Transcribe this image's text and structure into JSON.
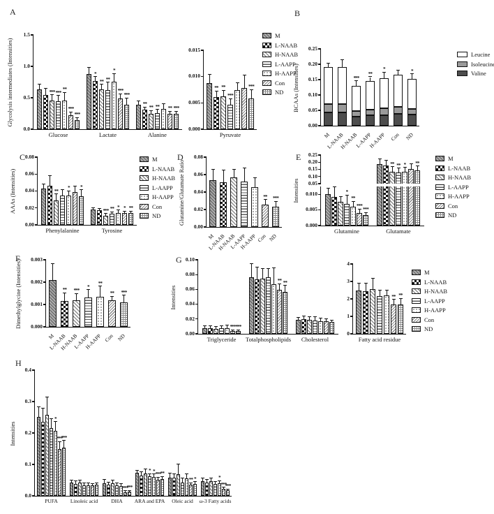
{
  "figure": {
    "panel_labels": [
      "A",
      "B",
      "C",
      "D",
      "E",
      "F",
      "G",
      "H"
    ]
  },
  "groups": [
    "M",
    "L-NAAB",
    "H-NAAB",
    "L-AAPP",
    "H-AAPP",
    "Con",
    "ND"
  ],
  "bcaa_legend": [
    {
      "label": "Leucine",
      "color": "#ffffff"
    },
    {
      "label": "Isoleucine",
      "color": "#9a9a9a"
    },
    {
      "label": "Valine",
      "color": "#4d4d4d"
    }
  ],
  "e_axis_label": "Intensities",
  "colors": {
    "axis": "#111111",
    "leucine": "#ffffff",
    "isoleucine": "#9a9a9a",
    "valine": "#4d4d4d"
  },
  "chart_data": [
    {
      "id": "A-main",
      "panel": "A",
      "type": "bar",
      "ylabel": "Glycolysis intermediates (Intensities)",
      "ymax": 1.5,
      "yticks": [
        "0.0",
        "0.5",
        "1.0",
        "1.5"
      ],
      "categories": [
        {
          "name": "Glucose",
          "values": [
            0.63,
            0.55,
            0.46,
            0.44,
            0.46,
            0.22,
            0.14
          ],
          "errors": [
            0.08,
            0.1,
            0.08,
            0.09,
            0.12,
            0.05,
            0.04
          ],
          "stars": [
            "",
            "",
            "***",
            "***",
            "**",
            "***",
            "***"
          ]
        },
        {
          "name": "Lactate",
          "values": [
            0.88,
            0.77,
            0.63,
            0.62,
            0.76,
            0.49,
            0.39
          ],
          "errors": [
            0.1,
            0.06,
            0.08,
            0.12,
            0.12,
            0.07,
            0.1
          ],
          "stars": [
            "",
            "*",
            "**",
            "**",
            "*",
            "***",
            "***"
          ]
        },
        {
          "name": "Alanine",
          "values": [
            0.39,
            0.31,
            0.25,
            0.26,
            0.32,
            0.25,
            0.24
          ],
          "errors": [
            0.06,
            0.04,
            0.04,
            0.05,
            0.08,
            0.03,
            0.04
          ],
          "stars": [
            "",
            "**",
            "**",
            "**",
            "",
            "**",
            "***"
          ]
        }
      ]
    },
    {
      "id": "A-pyr",
      "panel": "A",
      "type": "bar",
      "ymax": 0.015,
      "yticks": [
        "0.000",
        "0.005",
        "0.010",
        "0.015"
      ],
      "categories": [
        {
          "name": "Pyruvate",
          "values": [
            0.0088,
            0.0061,
            0.0062,
            0.0047,
            0.0074,
            0.0078,
            0.0058
          ],
          "errors": [
            0.0015,
            0.0011,
            0.0011,
            0.001,
            0.0014,
            0.0024,
            0.0017
          ],
          "stars": [
            "",
            "**",
            "**",
            "***",
            "",
            "",
            "***"
          ]
        }
      ]
    },
    {
      "id": "B",
      "panel": "B",
      "type": "stacked_bar",
      "ylabel": "BCAAs (Intensities)",
      "ymax": 0.25,
      "yticks": [
        "0.00",
        "0.05",
        "0.10",
        "0.15",
        "0.20",
        "0.25"
      ],
      "rot_labels": true,
      "series": [
        {
          "name": "Valine",
          "color": "#4d4d4d",
          "values": [
            0.044,
            0.043,
            0.029,
            0.033,
            0.035,
            0.038,
            0.036
          ],
          "errors": [
            0.004,
            0.005,
            0.003,
            0.004,
            0.005,
            0.005,
            0.004
          ],
          "stars": [
            "",
            "",
            "**",
            "*",
            "*",
            "",
            "*"
          ]
        },
        {
          "name": "Isoleucine",
          "color": "#9a9a9a",
          "values": [
            0.026,
            0.027,
            0.018,
            0.02,
            0.022,
            0.023,
            0.019
          ],
          "errors": [
            0.003,
            0.005,
            0.004,
            0.004,
            0.004,
            0.004,
            0.004
          ],
          "stars": [
            "",
            "",
            "***",
            "**",
            "",
            "*",
            "**"
          ]
        },
        {
          "name": "Leucine",
          "color": "#ffffff",
          "values": [
            0.121,
            0.121,
            0.082,
            0.093,
            0.098,
            0.104,
            0.097
          ],
          "errors": [
            0.012,
            0.022,
            0.016,
            0.012,
            0.018,
            0.015,
            0.016
          ],
          "stars": [
            "",
            "",
            "***",
            "**",
            "*",
            "",
            "*"
          ]
        }
      ]
    },
    {
      "id": "C",
      "panel": "C",
      "type": "bar",
      "ylabel": "AAAs (Intensities)",
      "ymax": 0.08,
      "yticks": [
        "0.00",
        "0.02",
        "0.04",
        "0.06",
        "0.08"
      ],
      "categories": [
        {
          "name": "Phenylalanine",
          "values": [
            0.043,
            0.046,
            0.029,
            0.035,
            0.035,
            0.039,
            0.034
          ],
          "errors": [
            0.005,
            0.012,
            0.007,
            0.006,
            0.005,
            0.006,
            0.007
          ],
          "stars": [
            "",
            "",
            "**",
            "",
            "*",
            "",
            "*"
          ]
        },
        {
          "name": "Tyrosine",
          "values": [
            0.018,
            0.017,
            0.011,
            0.013,
            0.014,
            0.014,
            0.014
          ],
          "errors": [
            0.002,
            0.002,
            0.002,
            0.002,
            0.003,
            0.002,
            0.002
          ],
          "stars": [
            "",
            "",
            "***",
            "**",
            "*",
            "*",
            "**"
          ]
        }
      ]
    },
    {
      "id": "D",
      "panel": "D",
      "type": "bar",
      "ylabel": "Glutamine/Glutamate Ratio",
      "ymax": 0.08,
      "yticks": [
        "0.00",
        "0.02",
        "0.04",
        "0.06",
        "0.08"
      ],
      "rot_labels": true,
      "categories": [
        {
          "name": "",
          "values": [
            0.054,
            0.051,
            0.057,
            0.052,
            0.046,
            0.026,
            0.023
          ],
          "errors": [
            0.012,
            0.014,
            0.009,
            0.015,
            0.01,
            0.005,
            0.006
          ],
          "stars": [
            "",
            "",
            "",
            "",
            "",
            "**",
            "***"
          ]
        }
      ]
    },
    {
      "id": "E-top",
      "panel": "E",
      "type": "bar",
      "ymin": 0.05,
      "ymax": 0.25,
      "no_baseline": true,
      "cat_labels": false,
      "yticks": [
        "0.05",
        "0.10",
        "0.15",
        "0.20",
        "0.25"
      ],
      "categories": [
        {
          "name": "Glutamine",
          "values": [
            0.01,
            0.0092,
            0.0075,
            0.0069,
            0.0061,
            0.004,
            0.0033
          ],
          "errors": [
            0,
            0,
            0,
            0,
            0,
            0,
            0
          ],
          "stars": [
            "",
            "",
            "",
            "",
            "",
            "",
            ""
          ]
        },
        {
          "name": "Glutamate",
          "values": [
            0.186,
            0.178,
            0.135,
            0.13,
            0.133,
            0.152,
            0.143
          ],
          "errors": [
            0.036,
            0.032,
            0.03,
            0.025,
            0.027,
            0.033,
            0.027
          ],
          "stars": [
            "",
            "",
            "**",
            "**",
            "*",
            "",
            "**"
          ]
        }
      ]
    },
    {
      "id": "E-bot",
      "panel": "E",
      "type": "bar",
      "ymax": 0.0125,
      "yticks": [
        "0.000",
        "0.005",
        "0.010"
      ],
      "categories": [
        {
          "name": "Glutamine",
          "values": [
            0.01,
            0.0092,
            0.0075,
            0.0069,
            0.0061,
            0.004,
            0.0033
          ],
          "errors": [
            0.0018,
            0.003,
            0.0017,
            0.0028,
            0.0016,
            0.0012,
            0.0008
          ],
          "stars": [
            "",
            "",
            "",
            "*",
            "**",
            "***",
            "***"
          ]
        },
        {
          "name": "Glutamate",
          "values": [
            0.186,
            0.178,
            0.135,
            0.13,
            0.133,
            0.152,
            0.143
          ],
          "errors": [
            0,
            0,
            0,
            0,
            0,
            0,
            0
          ],
          "stars": [
            "",
            "",
            "",
            "",
            "",
            "",
            ""
          ]
        }
      ]
    },
    {
      "id": "F",
      "panel": "F",
      "type": "bar",
      "ylabel": "Dimethylglycine  (Intensities)",
      "ymax": 0.003,
      "yticks": [
        "0.000",
        "0.001",
        "0.002",
        "0.003"
      ],
      "rot_labels": true,
      "categories": [
        {
          "name": "",
          "values": [
            0.0021,
            0.00115,
            0.00118,
            0.0013,
            0.00135,
            0.0012,
            0.0011
          ],
          "errors": [
            0.0007,
            0.00035,
            0.0003,
            0.00035,
            0.00045,
            0.00015,
            0.0003
          ],
          "stars": [
            "",
            "**",
            "***",
            "*",
            "**",
            "**",
            "***"
          ]
        }
      ]
    },
    {
      "id": "G-left",
      "panel": "G",
      "type": "bar",
      "ylabel": "Intensities",
      "ymax": 0.1,
      "yticks": [
        "0.00",
        "0.02",
        "0.04",
        "0.06",
        "0.08",
        "0.10"
      ],
      "categories": [
        {
          "name": "Triglyceride",
          "values": [
            0.008,
            0.008,
            0.007,
            0.008,
            0.008,
            0.004,
            0.004
          ],
          "errors": [
            0.002,
            0.002,
            0.002,
            0.002,
            0.003,
            0.001,
            0.001
          ],
          "stars": [
            "",
            "",
            "",
            "",
            "",
            "***",
            "***"
          ]
        },
        {
          "name": "Totalphospholipids",
          "values": [
            0.076,
            0.074,
            0.075,
            0.076,
            0.067,
            0.059,
            0.057
          ],
          "errors": [
            0.018,
            0.016,
            0.013,
            0.012,
            0.022,
            0.008,
            0.008
          ],
          "stars": [
            "",
            "",
            "",
            "",
            "",
            "**",
            "**"
          ]
        },
        {
          "name": "Cholesterol",
          "values": [
            0.019,
            0.02,
            0.019,
            0.018,
            0.017,
            0.017,
            0.016
          ],
          "errors": [
            0.003,
            0.004,
            0.004,
            0.005,
            0.004,
            0.003,
            0.002
          ],
          "stars": [
            "",
            "",
            "",
            "",
            "",
            "",
            ""
          ]
        }
      ]
    },
    {
      "id": "G-right",
      "panel": "G",
      "type": "bar",
      "ymax": 4,
      "yticks": [
        "0",
        "1",
        "2",
        "3",
        "4"
      ],
      "categories": [
        {
          "name": "Fatty acid residue",
          "values": [
            2.5,
            2.45,
            2.55,
            2.15,
            2.2,
            1.7,
            1.7
          ],
          "errors": [
            0.4,
            0.45,
            0.6,
            0.35,
            0.3,
            0.25,
            0.3
          ],
          "stars": [
            "",
            "",
            "",
            "",
            "",
            "**",
            "**"
          ]
        }
      ]
    },
    {
      "id": "H",
      "panel": "H",
      "type": "bar",
      "ylabel": "Intensities",
      "ymax": 0.4,
      "yticks": [
        "0.0",
        "0.1",
        "0.2",
        "0.3",
        "0.4"
      ],
      "categories": [
        {
          "name": "PUFA",
          "values": [
            0.252,
            0.235,
            0.258,
            0.215,
            0.207,
            0.15,
            0.153
          ],
          "errors": [
            0.03,
            0.042,
            0.055,
            0.03,
            0.028,
            0.022,
            0.022
          ],
          "stars": [
            "",
            "",
            "",
            "",
            "*",
            "***",
            "***"
          ]
        },
        {
          "name": "Linoleic acid",
          "values": [
            0.042,
            0.038,
            0.042,
            0.033,
            0.034,
            0.033,
            0.035
          ],
          "errors": [
            0.007,
            0.008,
            0.008,
            0.006,
            0.006,
            0.005,
            0.005
          ],
          "stars": [
            "",
            "",
            "",
            "",
            "",
            "",
            ""
          ]
        },
        {
          "name": "DHA",
          "values": [
            0.04,
            0.035,
            0.04,
            0.033,
            0.032,
            0.012,
            0.013
          ],
          "errors": [
            0.012,
            0.008,
            0.008,
            0.006,
            0.006,
            0.003,
            0.003
          ],
          "stars": [
            "",
            "",
            "",
            "",
            "",
            "***",
            "***"
          ]
        },
        {
          "name": "ARA and EPA",
          "values": [
            0.073,
            0.065,
            0.072,
            0.062,
            0.06,
            0.051,
            0.053
          ],
          "errors": [
            0.008,
            0.01,
            0.012,
            0.008,
            0.008,
            0.007,
            0.007
          ],
          "stars": [
            "",
            "",
            "",
            "*",
            "*",
            "***",
            "**"
          ]
        },
        {
          "name": "Oleic acid",
          "values": [
            0.057,
            0.057,
            0.068,
            0.043,
            0.055,
            0.035,
            0.038
          ],
          "errors": [
            0.015,
            0.012,
            0.032,
            0.012,
            0.015,
            0.006,
            0.006
          ],
          "stars": [
            "",
            "",
            "",
            "",
            "",
            "**",
            "*"
          ]
        },
        {
          "name": "ω-3 Fatty acids",
          "values": [
            0.047,
            0.043,
            0.047,
            0.038,
            0.04,
            0.022,
            0.018
          ],
          "errors": [
            0.008,
            0.008,
            0.008,
            0.006,
            0.007,
            0.004,
            0.003
          ],
          "stars": [
            "",
            "",
            "",
            "",
            "*",
            "***",
            "***"
          ]
        }
      ]
    }
  ]
}
